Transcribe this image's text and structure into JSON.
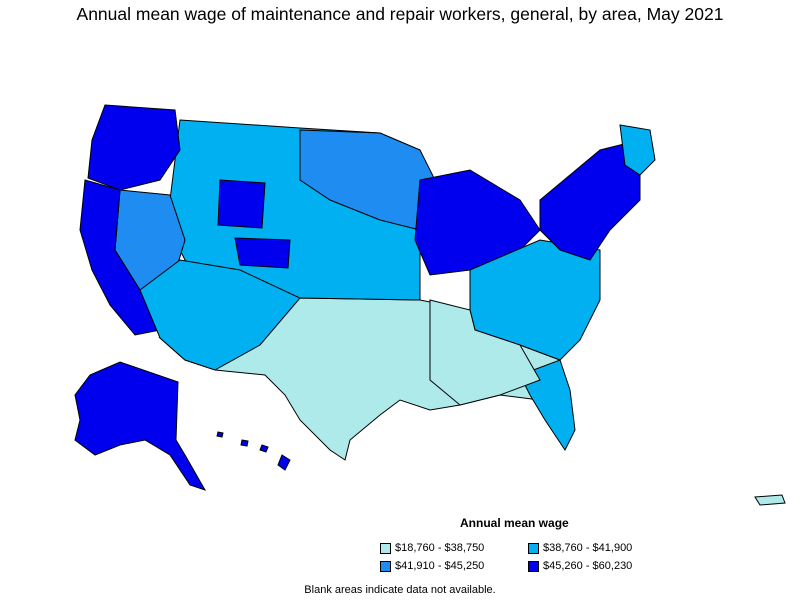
{
  "title": "Annual mean wage of maintenance and repair workers, general, by area, May 2021",
  "legend": {
    "title": "Annual mean wage",
    "items": [
      {
        "label": "$18,760 - $38,750",
        "color": "#aeeaea"
      },
      {
        "label": "$38,760 - $41,900",
        "color": "#00b0f0"
      },
      {
        "label": "$41,910 - $45,250",
        "color": "#1e8cf0"
      },
      {
        "label": "$45,260 - $60,230",
        "color": "#0000ee"
      }
    ]
  },
  "footnote": "Blank areas indicate data not available.",
  "regions": {
    "pacific_northwest": "$45,260 - $60,230",
    "california_coast": "$45,260 - $60,230",
    "great_basin": "$41,910 - $45,250",
    "mountain_north": "$38,760 - $41,900",
    "wyoming": "$45,260 - $60,230",
    "colorado_front_range": "$45,260 - $60,230",
    "great_plains": "$38,760 - $41,900",
    "southwest_desert": "$38,760 - $41,900",
    "texas_oklahoma": "$18,760 - $38,750",
    "gulf_south": "$18,760 - $38,750",
    "upper_midwest": "$41,910 - $45,250",
    "great_lakes": "$45,260 - $60,230",
    "southeast": "$38,760 - $41,900",
    "northeast_corridor": "$45,260 - $60,230",
    "alaska": "$45,260 - $60,230",
    "hawaii": "$45,260 - $60,230",
    "puerto_rico": "$18,760 - $38,750"
  }
}
